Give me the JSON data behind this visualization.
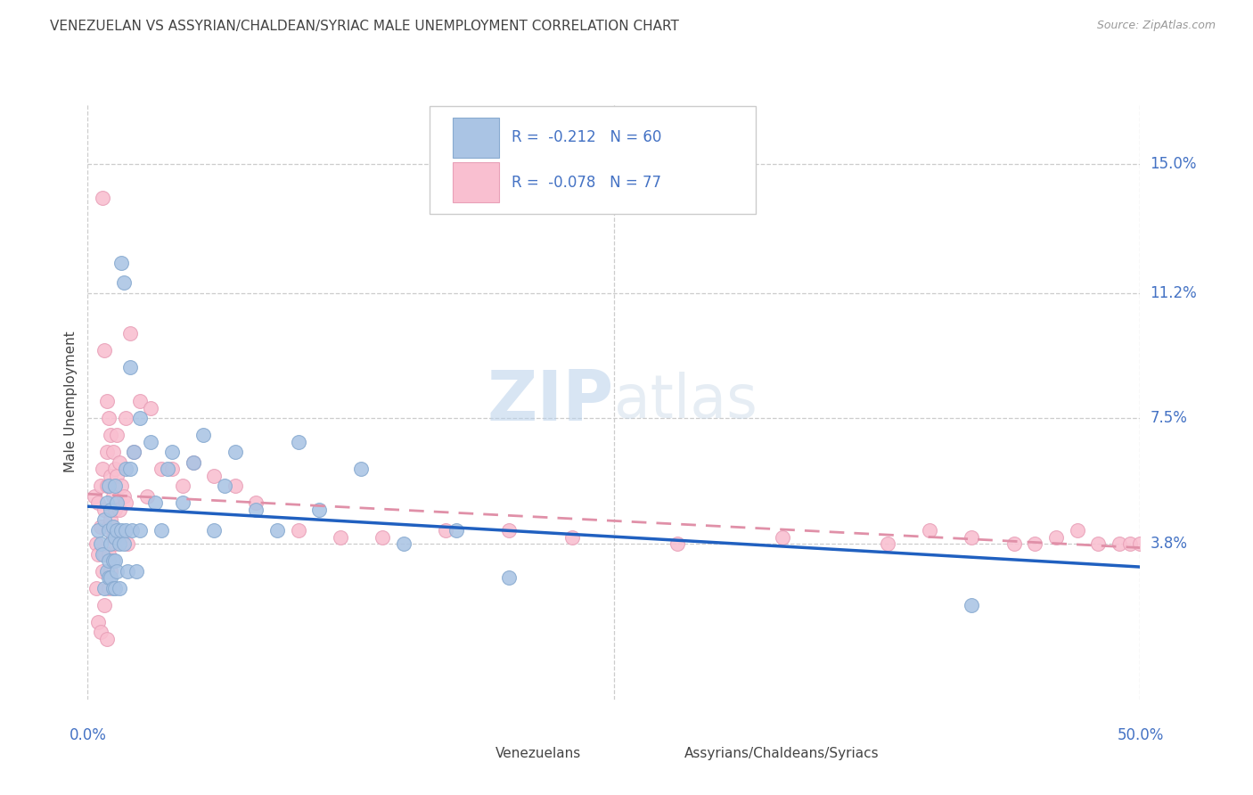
{
  "title": "VENEZUELAN VS ASSYRIAN/CHALDEAN/SYRIAC MALE UNEMPLOYMENT CORRELATION CHART",
  "source": "Source: ZipAtlas.com",
  "ylabel": "Male Unemployment",
  "ytick_vals": [
    0.038,
    0.075,
    0.112,
    0.15
  ],
  "ytick_labels": [
    "3.8%",
    "7.5%",
    "11.2%",
    "15.0%"
  ],
  "xmin": 0.0,
  "xmax": 0.5,
  "ymin": -0.008,
  "ymax": 0.168,
  "legend_blue_r": "-0.212",
  "legend_blue_n": "60",
  "legend_pink_r": "-0.078",
  "legend_pink_n": "77",
  "legend_label_blue": "Venezuelans",
  "legend_label_pink": "Assyrians/Chaldeans/Syriacs",
  "watermark_zip": "ZIP",
  "watermark_atlas": "atlas",
  "blue_color": "#aac4e4",
  "pink_color": "#f9bfd0",
  "blue_edge": "#88aad0",
  "pink_edge": "#e8a0b8",
  "blue_line_color": "#2060c0",
  "pink_line_color": "#e090a8",
  "text_color_blue": "#4472c4",
  "text_color_dark": "#444444",
  "grid_color": "#cccccc",
  "blue_scatter_x": [
    0.005,
    0.006,
    0.007,
    0.008,
    0.008,
    0.009,
    0.009,
    0.01,
    0.01,
    0.01,
    0.01,
    0.011,
    0.011,
    0.011,
    0.012,
    0.012,
    0.012,
    0.013,
    0.013,
    0.013,
    0.013,
    0.014,
    0.014,
    0.014,
    0.015,
    0.015,
    0.016,
    0.016,
    0.017,
    0.017,
    0.018,
    0.018,
    0.019,
    0.02,
    0.02,
    0.021,
    0.022,
    0.023,
    0.025,
    0.025,
    0.03,
    0.032,
    0.035,
    0.038,
    0.04,
    0.045,
    0.05,
    0.055,
    0.06,
    0.065,
    0.07,
    0.08,
    0.09,
    0.1,
    0.11,
    0.13,
    0.15,
    0.175,
    0.2,
    0.42
  ],
  "blue_scatter_y": [
    0.042,
    0.038,
    0.035,
    0.045,
    0.025,
    0.05,
    0.03,
    0.055,
    0.042,
    0.028,
    0.033,
    0.038,
    0.048,
    0.028,
    0.043,
    0.033,
    0.025,
    0.04,
    0.055,
    0.033,
    0.025,
    0.042,
    0.05,
    0.03,
    0.038,
    0.025,
    0.121,
    0.042,
    0.115,
    0.038,
    0.06,
    0.042,
    0.03,
    0.09,
    0.06,
    0.042,
    0.065,
    0.03,
    0.075,
    0.042,
    0.068,
    0.05,
    0.042,
    0.06,
    0.065,
    0.05,
    0.062,
    0.07,
    0.042,
    0.055,
    0.065,
    0.048,
    0.042,
    0.068,
    0.048,
    0.06,
    0.038,
    0.042,
    0.028,
    0.02
  ],
  "pink_scatter_x": [
    0.003,
    0.004,
    0.004,
    0.005,
    0.005,
    0.005,
    0.006,
    0.006,
    0.006,
    0.007,
    0.007,
    0.007,
    0.008,
    0.008,
    0.008,
    0.008,
    0.009,
    0.009,
    0.009,
    0.009,
    0.01,
    0.01,
    0.01,
    0.01,
    0.01,
    0.011,
    0.011,
    0.011,
    0.011,
    0.012,
    0.012,
    0.012,
    0.013,
    0.013,
    0.013,
    0.014,
    0.014,
    0.014,
    0.015,
    0.015,
    0.016,
    0.016,
    0.017,
    0.018,
    0.018,
    0.019,
    0.02,
    0.022,
    0.025,
    0.028,
    0.03,
    0.035,
    0.04,
    0.045,
    0.05,
    0.06,
    0.07,
    0.08,
    0.1,
    0.12,
    0.14,
    0.17,
    0.2,
    0.23,
    0.28,
    0.33,
    0.38,
    0.4,
    0.42,
    0.44,
    0.45,
    0.46,
    0.47,
    0.48,
    0.49,
    0.495,
    0.5
  ],
  "pink_scatter_y": [
    0.052,
    0.038,
    0.025,
    0.05,
    0.035,
    0.015,
    0.055,
    0.043,
    0.012,
    0.14,
    0.06,
    0.03,
    0.095,
    0.048,
    0.035,
    0.02,
    0.08,
    0.065,
    0.055,
    0.01,
    0.075,
    0.055,
    0.043,
    0.035,
    0.025,
    0.07,
    0.058,
    0.045,
    0.03,
    0.065,
    0.052,
    0.04,
    0.06,
    0.048,
    0.038,
    0.07,
    0.058,
    0.04,
    0.062,
    0.048,
    0.055,
    0.04,
    0.052,
    0.075,
    0.05,
    0.038,
    0.1,
    0.065,
    0.08,
    0.052,
    0.078,
    0.06,
    0.06,
    0.055,
    0.062,
    0.058,
    0.055,
    0.05,
    0.042,
    0.04,
    0.04,
    0.042,
    0.042,
    0.04,
    0.038,
    0.04,
    0.038,
    0.042,
    0.04,
    0.038,
    0.038,
    0.04,
    0.042,
    0.038,
    0.038,
    0.038,
    0.038
  ]
}
